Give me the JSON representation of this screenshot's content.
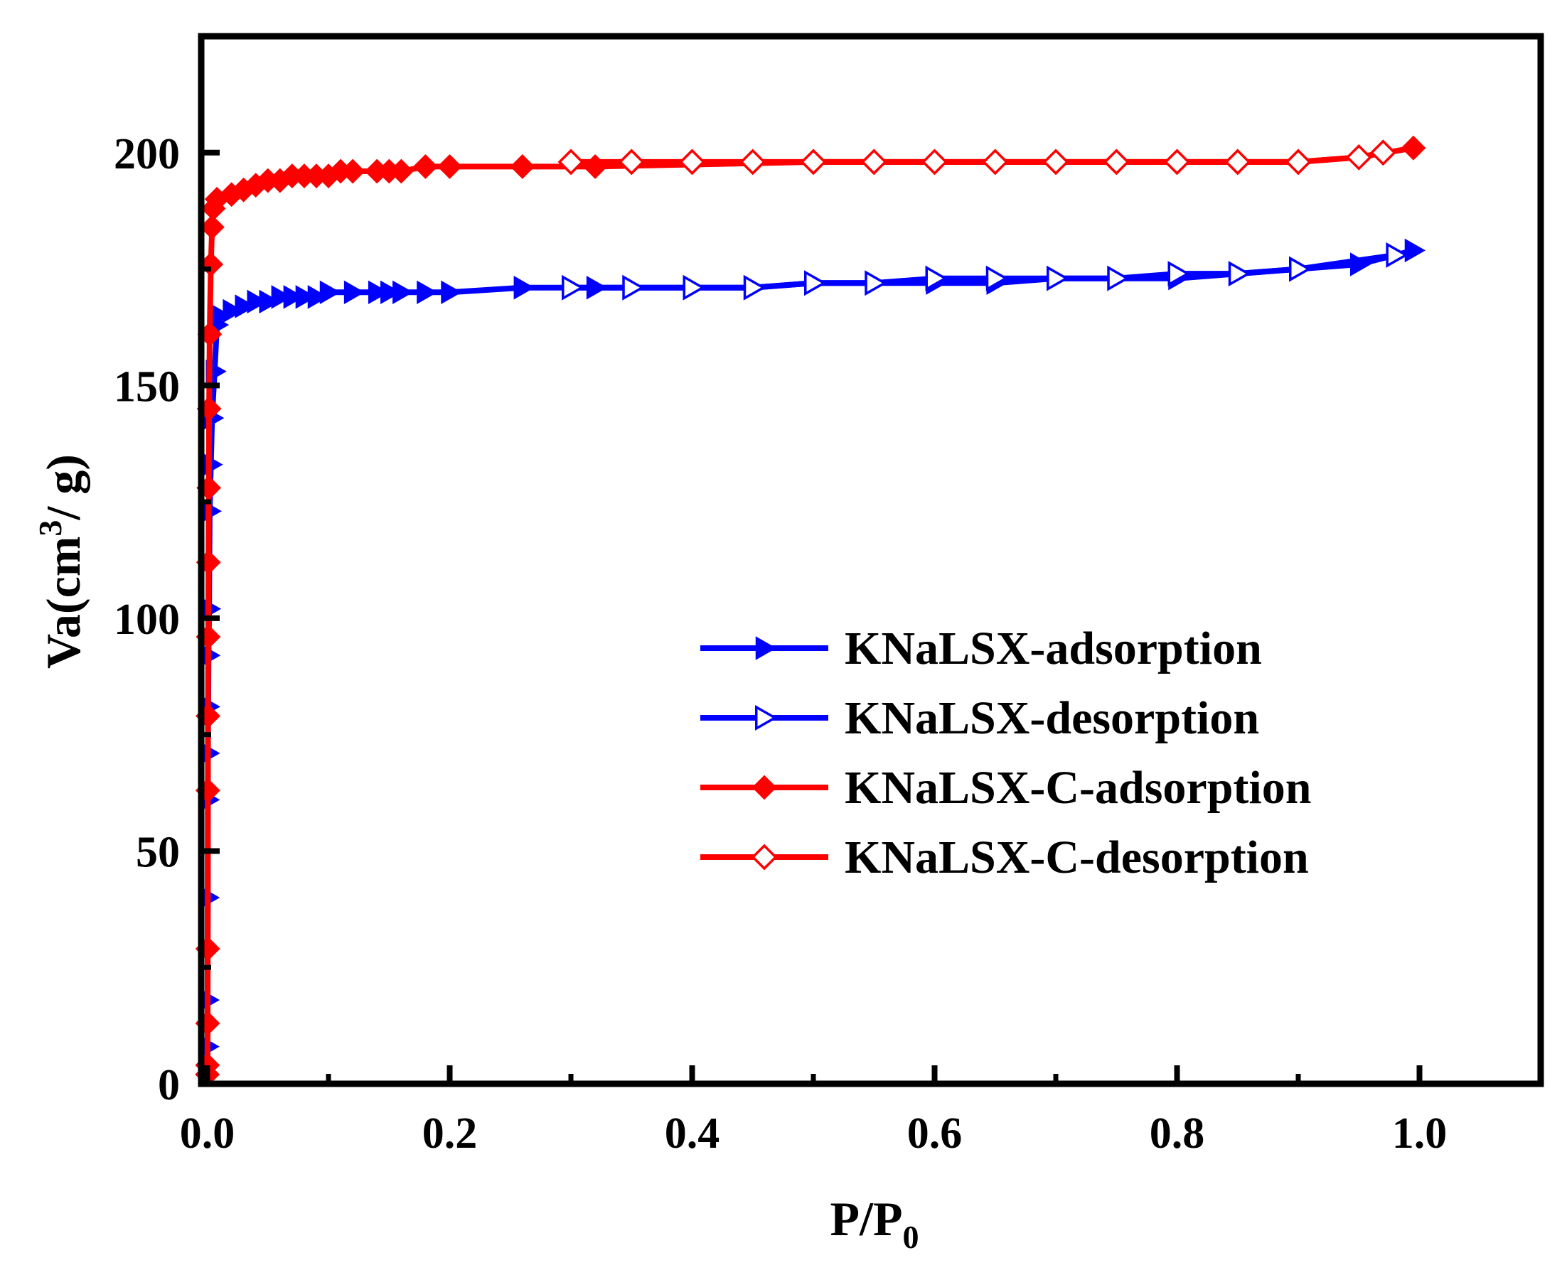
{
  "chart_data": {
    "type": "line",
    "title": "",
    "xlabel": "P/P",
    "xlabel_sub": "0",
    "ylabel_prefix": "Va(cm",
    "ylabel_sup": "3",
    "ylabel_suffix": "/ g)",
    "xlim": [
      -0.005,
      1.1
    ],
    "ylim": [
      0,
      225
    ],
    "xticks": [
      0.0,
      0.2,
      0.4,
      0.6,
      0.8,
      1.0
    ],
    "xtick_labels": [
      "0.0",
      "0.2",
      "0.4",
      "0.6",
      "0.8",
      "1.0"
    ],
    "yticks": [
      0,
      50,
      100,
      150,
      200
    ],
    "ytick_labels": [
      "0",
      "50",
      "100",
      "150",
      "200"
    ],
    "legend_position": "center-right",
    "series": [
      {
        "name": "KNaLSX-adsorption",
        "color": "#0000ff",
        "marker": "triangle-right-filled",
        "x": [
          0.0001,
          0.0002,
          0.0003,
          0.0004,
          0.0005,
          0.0006,
          0.0008,
          0.001,
          0.0015,
          0.002,
          0.003,
          0.004,
          0.006,
          0.008,
          0.01,
          0.02,
          0.03,
          0.04,
          0.05,
          0.06,
          0.07,
          0.08,
          0.09,
          0.1,
          0.12,
          0.14,
          0.15,
          0.16,
          0.18,
          0.2,
          0.26,
          0.3,
          0.32,
          0.4,
          0.45,
          0.5,
          0.55,
          0.6,
          0.65,
          0.7,
          0.75,
          0.8,
          0.85,
          0.9,
          0.95,
          0.995
        ],
        "y": [
          2,
          8,
          18,
          40,
          61,
          71,
          81,
          92,
          102,
          123,
          133,
          143,
          153,
          163,
          165,
          166,
          167,
          168,
          168,
          169,
          169,
          169,
          169,
          170,
          170,
          170,
          170,
          170,
          170,
          170,
          171,
          171,
          171,
          171,
          171,
          172,
          172,
          172,
          172,
          173,
          173,
          173,
          174,
          175,
          176,
          179
        ]
      },
      {
        "name": "KNaLSX-desorption",
        "color": "#0000ff",
        "marker": "triangle-right-open",
        "x": [
          0.98,
          0.9,
          0.85,
          0.8,
          0.75,
          0.7,
          0.65,
          0.6,
          0.55,
          0.5,
          0.45,
          0.4,
          0.35,
          0.3
        ],
        "y": [
          178,
          175,
          174,
          174,
          173,
          173,
          173,
          173,
          172,
          172,
          171,
          171,
          171,
          171
        ]
      },
      {
        "name": "KNaLSX-C-adsorption",
        "color": "#ff0000",
        "marker": "diamond-filled",
        "x": [
          0.0001,
          0.0002,
          0.0003,
          0.0004,
          0.0005,
          0.0006,
          0.0008,
          0.001,
          0.0012,
          0.0015,
          0.002,
          0.003,
          0.004,
          0.005,
          0.008,
          0.02,
          0.03,
          0.04,
          0.05,
          0.06,
          0.07,
          0.08,
          0.09,
          0.1,
          0.11,
          0.12,
          0.14,
          0.15,
          0.16,
          0.18,
          0.2,
          0.26,
          0.32,
          0.5,
          0.55,
          0.6,
          0.7,
          0.75,
          0.8,
          0.85,
          0.9,
          0.95,
          0.995
        ],
        "y": [
          2,
          4,
          13,
          29,
          63,
          79,
          96,
          112,
          128,
          145,
          161,
          176,
          184,
          188,
          190,
          191,
          192,
          193,
          194,
          194,
          195,
          195,
          195,
          195,
          196,
          196,
          196,
          196,
          196,
          197,
          197,
          197,
          197,
          198,
          198,
          198,
          198,
          198,
          198,
          198,
          198,
          199,
          201
        ]
      },
      {
        "name": "KNaLSX-C-desorption",
        "color": "#ff0000",
        "marker": "diamond-open",
        "x": [
          0.97,
          0.95,
          0.9,
          0.85,
          0.8,
          0.75,
          0.7,
          0.65,
          0.6,
          0.55,
          0.5,
          0.45,
          0.4,
          0.35,
          0.3
        ],
        "y": [
          200,
          199,
          198,
          198,
          198,
          198,
          198,
          198,
          198,
          198,
          198,
          198,
          198,
          198,
          198
        ]
      }
    ]
  }
}
